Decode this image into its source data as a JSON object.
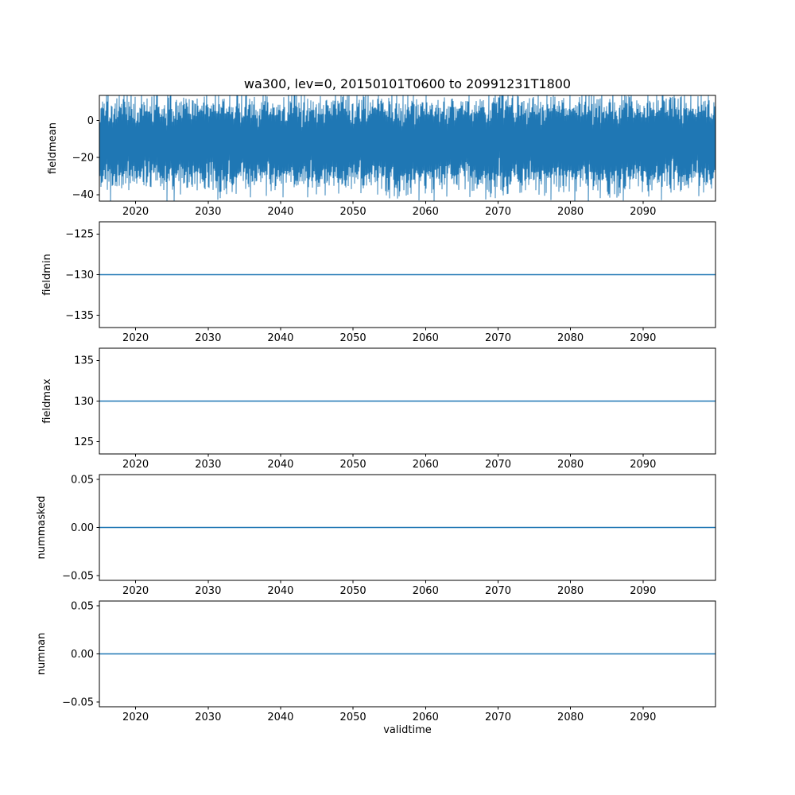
{
  "figure": {
    "title": "wa300, lev=0, 20150101T0600 to 20991231T1800",
    "xlabel": "validtime",
    "background": "#ffffff",
    "line_color": "#1f77b4",
    "spine_color": "#000000"
  },
  "chart_data": {
    "type": "line",
    "layout": "5 vertically stacked subplots sharing the same x axis, no grid, legend off",
    "x_axis": {
      "label": "validtime",
      "range": [
        2015,
        2100
      ],
      "ticks": [
        2020,
        2030,
        2040,
        2050,
        2060,
        2070,
        2080,
        2090
      ],
      "tick_labels": [
        "2020",
        "2030",
        "2040",
        "2050",
        "2060",
        "2070",
        "2080",
        "2090"
      ]
    },
    "subplots": [
      {
        "ylabel": "fieldmean",
        "ylim": [
          -43.5,
          13.5
        ],
        "yticks": [
          0,
          -20,
          -40
        ],
        "ytick_labels": [
          "0",
          "−20",
          "−40"
        ],
        "series": {
          "name": "fieldmean",
          "kind": "noisy",
          "description": "dense high-frequency noise spanning the whole period 2015-2100",
          "mean": -12,
          "std": 9.5,
          "min": -42,
          "max": 13,
          "seed": 123457
        }
      },
      {
        "ylabel": "fieldmin",
        "ylim": [
          -136.5,
          -123.5
        ],
        "yticks": [
          -125,
          -130,
          -135
        ],
        "ytick_labels": [
          "−125",
          "−130",
          "−135"
        ],
        "series": {
          "name": "fieldmin",
          "kind": "constant",
          "value": -130
        }
      },
      {
        "ylabel": "fieldmax",
        "ylim": [
          123.5,
          136.5
        ],
        "yticks": [
          135,
          130,
          125
        ],
        "ytick_labels": [
          "135",
          "130",
          "125"
        ],
        "series": {
          "name": "fieldmax",
          "kind": "constant",
          "value": 130
        }
      },
      {
        "ylabel": "nummasked",
        "ylim": [
          -0.055,
          0.055
        ],
        "yticks": [
          0.05,
          0,
          -0.05
        ],
        "ytick_labels": [
          "0.05",
          "0.00",
          "−0.05"
        ],
        "series": {
          "name": "nummasked",
          "kind": "constant",
          "value": 0
        }
      },
      {
        "ylabel": "numnan",
        "ylim": [
          -0.055,
          0.055
        ],
        "yticks": [
          0.05,
          0,
          -0.05
        ],
        "ytick_labels": [
          "0.05",
          "0.00",
          "−0.05"
        ],
        "series": {
          "name": "numnan",
          "kind": "constant",
          "value": 0
        }
      }
    ]
  }
}
